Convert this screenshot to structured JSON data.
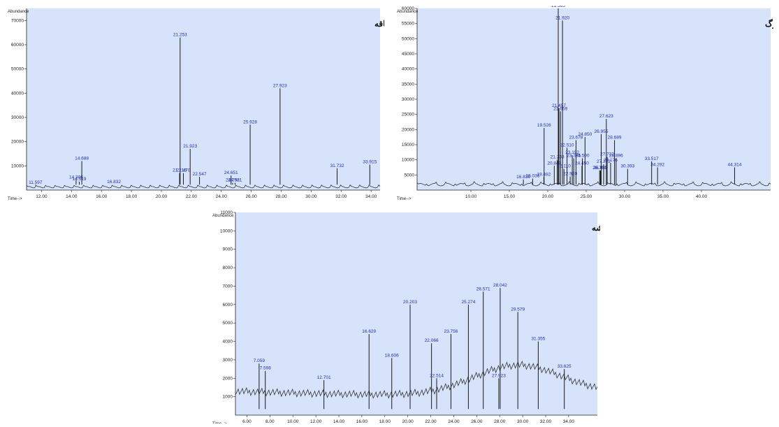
{
  "chart_data": [
    {
      "type": "line",
      "title": "(الف) ساقه",
      "ylabel": "Abundance",
      "xlabel": "Time-->",
      "xlim": [
        11.0,
        34.6
      ],
      "ylim": [
        0,
        75000
      ],
      "x_ticks": [
        "12.00",
        "14.00",
        "16.00",
        "18.00",
        "20.00",
        "22.00",
        "24.00",
        "26.00",
        "28.00",
        "30.00",
        "32.00",
        "34.00"
      ],
      "y_ticks": [
        "10000",
        "20000",
        "30000",
        "40000",
        "50000",
        "60000",
        "70000"
      ],
      "peaks": [
        {
          "label": "11.597",
          "x": 11.597,
          "y": 2000
        },
        {
          "label": "14.306",
          "x": 14.306,
          "y": 4200
        },
        {
          "label": "14.519",
          "x": 14.519,
          "y": 3500
        },
        {
          "label": "14.688",
          "x": 14.688,
          "y": 12000
        },
        {
          "label": "16.832",
          "x": 16.832,
          "y": 2300
        },
        {
          "label": "21.253",
          "x": 21.253,
          "y": 63000
        },
        {
          "label": "21.216",
          "x": 21.216,
          "y": 7000
        },
        {
          "label": "21.470",
          "x": 21.47,
          "y": 7000
        },
        {
          "label": "21.923",
          "x": 21.923,
          "y": 17000
        },
        {
          "label": "22.547",
          "x": 22.547,
          "y": 5500
        },
        {
          "label": "24.651",
          "x": 24.651,
          "y": 6000
        },
        {
          "label": "24.758",
          "x": 24.758,
          "y": 3000
        },
        {
          "label": "24.921",
          "x": 24.921,
          "y": 3000
        },
        {
          "label": "25.928",
          "x": 25.928,
          "y": 27000
        },
        {
          "label": "27.923",
          "x": 27.923,
          "y": 42000
        },
        {
          "label": "31.732",
          "x": 31.732,
          "y": 9000
        },
        {
          "label": "33.915",
          "x": 33.915,
          "y": 10500
        }
      ]
    },
    {
      "type": "line",
      "title": "(ب) برگ",
      "ylabel": "Abundance",
      "xlabel": "Time-->",
      "xlim": [
        3.0,
        49.0
      ],
      "ylim": [
        0,
        60000
      ],
      "x_ticks": [
        "10.00",
        "15.00",
        "20.00",
        "25.00",
        "30.00",
        "35.00",
        "40.00"
      ],
      "y_ticks": [
        "5000",
        "10000",
        "15000",
        "20000",
        "25000",
        "30000",
        "35000",
        "40000",
        "45000",
        "50000",
        "55000",
        "60000"
      ],
      "peaks": [
        {
          "label": "16.830",
          "x": 16.83,
          "y": 3500
        },
        {
          "label": "18.036",
          "x": 18.036,
          "y": 3800
        },
        {
          "label": "19.492",
          "x": 19.492,
          "y": 4300
        },
        {
          "label": "19.526",
          "x": 19.526,
          "y": 20500
        },
        {
          "label": "20.849",
          "x": 20.849,
          "y": 8000
        },
        {
          "label": "21.238",
          "x": 21.238,
          "y": 10000
        },
        {
          "label": "21.365",
          "x": 21.365,
          "y": 60000
        },
        {
          "label": "21.457",
          "x": 21.457,
          "y": 27000
        },
        {
          "label": "21.659",
          "x": 21.659,
          "y": 26000
        },
        {
          "label": "21.920",
          "x": 21.92,
          "y": 56000
        },
        {
          "label": "22.110",
          "x": 22.11,
          "y": 7000
        },
        {
          "label": "22.510",
          "x": 22.51,
          "y": 14000
        },
        {
          "label": "22.920",
          "x": 22.92,
          "y": 4500
        },
        {
          "label": "23.192",
          "x": 23.192,
          "y": 11500
        },
        {
          "label": "23.385",
          "x": 23.385,
          "y": 10500
        },
        {
          "label": "23.678",
          "x": 23.678,
          "y": 16500
        },
        {
          "label": "24.450",
          "x": 24.45,
          "y": 8000
        },
        {
          "label": "24.500",
          "x": 24.5,
          "y": 10500
        },
        {
          "label": "24.850",
          "x": 24.85,
          "y": 17500
        },
        {
          "label": "26.750",
          "x": 26.75,
          "y": 6500
        },
        {
          "label": "26.859",
          "x": 26.859,
          "y": 6500
        },
        {
          "label": "26.955",
          "x": 26.955,
          "y": 18500
        },
        {
          "label": "27.272",
          "x": 27.272,
          "y": 8500
        },
        {
          "label": "27.623",
          "x": 27.623,
          "y": 23500
        },
        {
          "label": "27.732",
          "x": 27.732,
          "y": 11000
        },
        {
          "label": "28.176",
          "x": 28.176,
          "y": 9000
        },
        {
          "label": "28.689",
          "x": 28.689,
          "y": 16500
        },
        {
          "label": "28.896",
          "x": 28.896,
          "y": 10500
        },
        {
          "label": "30.393",
          "x": 30.393,
          "y": 7000
        },
        {
          "label": "33.517",
          "x": 33.517,
          "y": 9500
        },
        {
          "label": "34.292",
          "x": 34.292,
          "y": 7500
        },
        {
          "label": "44.314",
          "x": 44.314,
          "y": 7500
        }
      ]
    },
    {
      "type": "line",
      "title": "(ج) ریشه",
      "ylabel": "Abundance",
      "xlabel": "Time-->",
      "xlim": [
        5.0,
        36.5
      ],
      "ylim": [
        0,
        11000
      ],
      "x_ticks": [
        "6.00",
        "8.00",
        "10.00",
        "12.00",
        "14.00",
        "16.00",
        "18.00",
        "20.00",
        "22.00",
        "24.00",
        "26.00",
        "28.00",
        "30.00",
        "32.00",
        "34.00"
      ],
      "y_ticks": [
        "1000",
        "2000",
        "3000",
        "4000",
        "5000",
        "6000",
        "7000",
        "8000",
        "9000",
        "10000",
        "11000"
      ],
      "peaks": [
        {
          "label": "7.059",
          "x": 7.059,
          "y": 2800
        },
        {
          "label": "7.598",
          "x": 7.598,
          "y": 2400
        },
        {
          "label": "12.701",
          "x": 12.701,
          "y": 1900
        },
        {
          "label": "16.629",
          "x": 16.629,
          "y": 4400
        },
        {
          "label": "18.606",
          "x": 18.606,
          "y": 3100
        },
        {
          "label": "20.203",
          "x": 20.203,
          "y": 6000
        },
        {
          "label": "22.066",
          "x": 22.066,
          "y": 3900
        },
        {
          "label": "22.514",
          "x": 22.514,
          "y": 2000
        },
        {
          "label": "23.756",
          "x": 23.756,
          "y": 4400
        },
        {
          "label": "25.274",
          "x": 25.274,
          "y": 6000
        },
        {
          "label": "26.571",
          "x": 26.571,
          "y": 6700
        },
        {
          "label": "27.923",
          "x": 27.923,
          "y": 2000
        },
        {
          "label": "28.042",
          "x": 28.042,
          "y": 6900
        },
        {
          "label": "29.579",
          "x": 29.579,
          "y": 5600
        },
        {
          "label": "31.355",
          "x": 31.355,
          "y": 4000
        },
        {
          "label": "33.625",
          "x": 33.625,
          "y": 2500
        }
      ]
    }
  ]
}
